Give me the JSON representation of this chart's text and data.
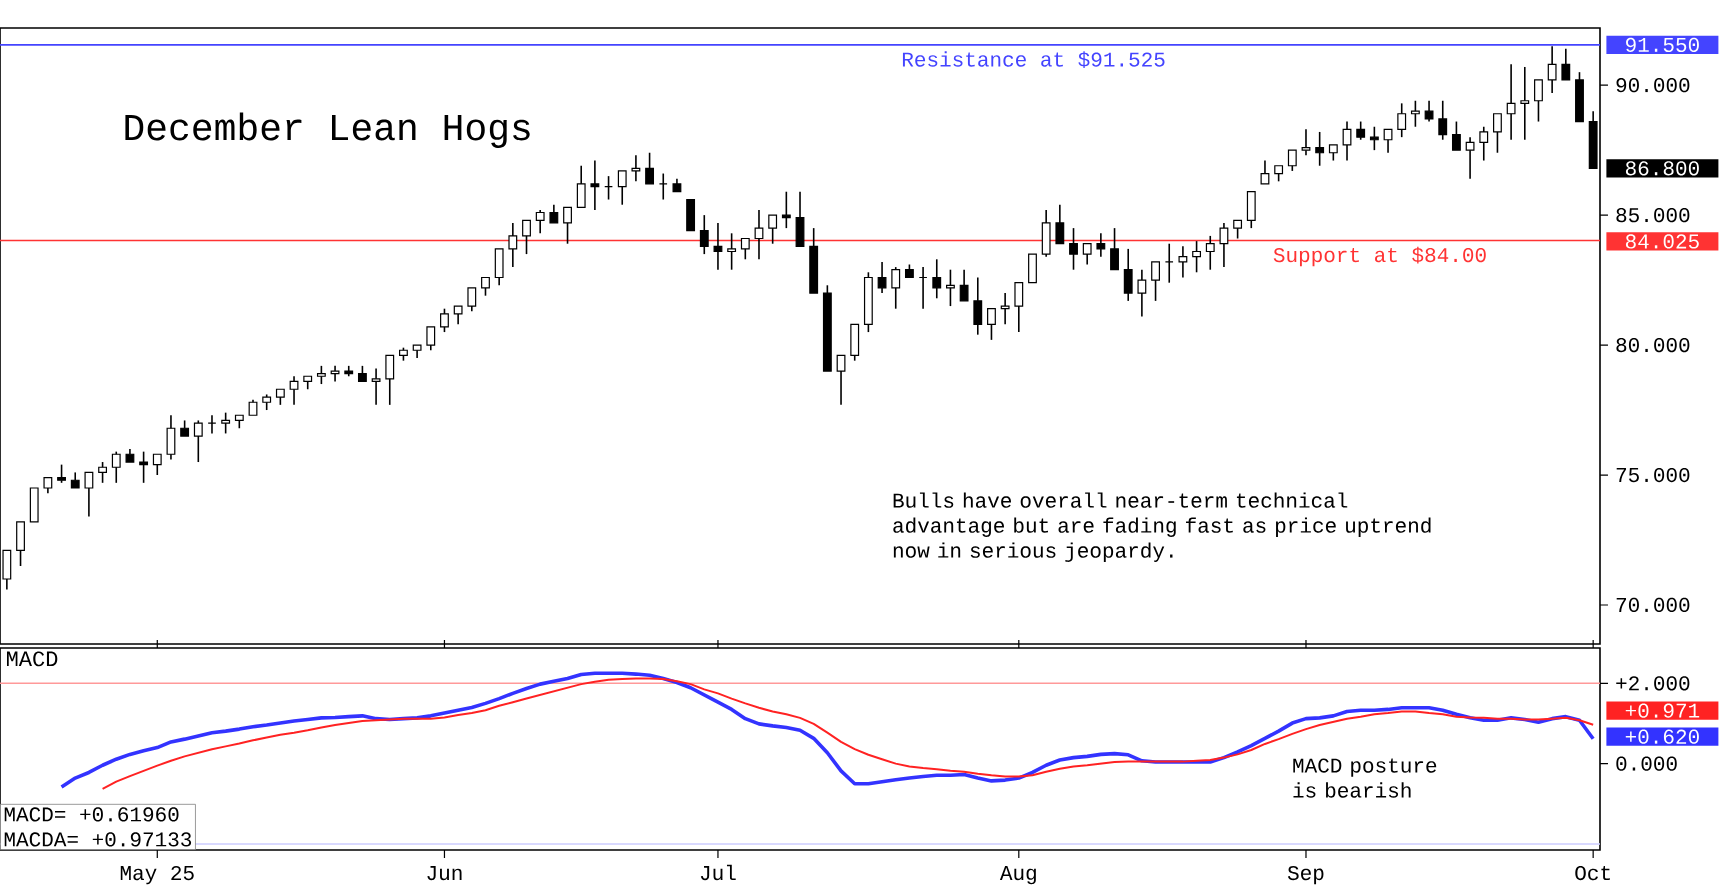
{
  "chart_data": [
    {
      "type": "candlestick",
      "title": "December Lean Hogs",
      "color": "#000000",
      "categories": [
        null,
        null,
        null,
        null,
        null,
        null,
        null,
        null,
        null,
        null,
        null,
        null,
        null,
        null,
        null,
        null,
        null,
        null,
        null,
        null,
        null,
        null,
        null,
        null,
        null,
        null,
        null,
        null,
        null,
        null,
        null,
        null,
        null,
        null,
        null,
        null,
        null,
        null,
        null,
        null,
        null,
        null,
        null,
        null,
        null,
        null,
        null,
        null,
        null,
        null,
        null,
        null,
        null,
        null,
        null,
        null,
        null,
        null,
        null,
        null,
        null,
        null,
        null,
        null,
        null,
        null,
        null,
        null,
        null,
        null,
        null,
        null,
        null,
        null,
        null,
        null,
        null,
        null,
        null,
        null,
        null,
        null,
        null,
        null,
        null,
        null,
        null,
        null,
        null,
        null,
        null,
        null,
        null,
        null,
        null,
        null,
        null,
        null,
        null,
        null,
        null,
        null,
        null,
        null,
        null,
        null,
        null,
        null,
        null,
        null,
        null,
        null,
        null,
        null,
        null,
        null,
        null
      ],
      "ohlc": [
        [
          71.0,
          72.1,
          70.6,
          72.1
        ],
        [
          72.1,
          73.2,
          71.5,
          73.2
        ],
        [
          73.2,
          74.5,
          73.2,
          74.5
        ],
        [
          74.5,
          74.9,
          74.3,
          74.9
        ],
        [
          74.9,
          75.4,
          74.7,
          74.8
        ],
        [
          74.8,
          75.1,
          74.5,
          74.5
        ],
        [
          74.5,
          75.1,
          73.4,
          75.1
        ],
        [
          75.1,
          75.5,
          74.7,
          75.3
        ],
        [
          75.3,
          75.9,
          74.7,
          75.8
        ],
        [
          75.8,
          76.0,
          75.5,
          75.5
        ],
        [
          75.5,
          75.9,
          74.7,
          75.4
        ],
        [
          75.4,
          75.8,
          75.0,
          75.8
        ],
        [
          75.8,
          77.3,
          75.6,
          76.8
        ],
        [
          76.8,
          77.1,
          76.5,
          76.5
        ],
        [
          76.5,
          77.1,
          75.5,
          77.0
        ],
        [
          77.0,
          77.3,
          76.6,
          77.0
        ],
        [
          77.0,
          77.4,
          76.6,
          77.1
        ],
        [
          77.1,
          77.3,
          76.8,
          77.3
        ],
        [
          77.3,
          77.9,
          77.3,
          77.8
        ],
        [
          77.8,
          78.1,
          77.5,
          78.0
        ],
        [
          78.0,
          78.3,
          77.7,
          78.3
        ],
        [
          78.3,
          78.8,
          77.7,
          78.6
        ],
        [
          78.6,
          78.8,
          78.3,
          78.8
        ],
        [
          78.8,
          79.2,
          78.5,
          78.9
        ],
        [
          78.9,
          79.2,
          78.6,
          79.0
        ],
        [
          79.0,
          79.2,
          78.8,
          78.9
        ],
        [
          78.9,
          79.2,
          78.6,
          78.6
        ],
        [
          78.6,
          79.1,
          77.7,
          78.7
        ],
        [
          78.7,
          79.6,
          77.7,
          79.6
        ],
        [
          79.6,
          79.9,
          79.4,
          79.8
        ],
        [
          79.8,
          80.0,
          79.5,
          80.0
        ],
        [
          80.0,
          80.7,
          79.8,
          80.7
        ],
        [
          80.7,
          81.4,
          80.5,
          81.2
        ],
        [
          81.2,
          81.5,
          80.8,
          81.5
        ],
        [
          81.5,
          82.2,
          81.3,
          82.2
        ],
        [
          82.2,
          82.6,
          81.9,
          82.6
        ],
        [
          82.6,
          83.7,
          82.3,
          83.7
        ],
        [
          83.7,
          84.7,
          83.0,
          84.2
        ],
        [
          84.2,
          84.8,
          83.5,
          84.8
        ],
        [
          84.8,
          85.2,
          84.3,
          85.1
        ],
        [
          85.1,
          85.4,
          84.7,
          84.7
        ],
        [
          84.7,
          85.3,
          83.9,
          85.3
        ],
        [
          85.3,
          86.9,
          85.3,
          86.2
        ],
        [
          86.2,
          87.1,
          85.2,
          86.1
        ],
        [
          86.1,
          86.5,
          85.6,
          86.1
        ],
        [
          86.1,
          86.7,
          85.4,
          86.7
        ],
        [
          86.7,
          87.3,
          86.3,
          86.8
        ],
        [
          86.8,
          87.4,
          86.2,
          86.2
        ],
        [
          86.2,
          86.6,
          85.6,
          86.2
        ],
        [
          86.2,
          86.4,
          85.9,
          85.9
        ],
        [
          85.6,
          85.6,
          84.4,
          84.4
        ],
        [
          84.4,
          85.0,
          83.5,
          83.8
        ],
        [
          83.8,
          84.7,
          82.9,
          83.6
        ],
        [
          83.6,
          84.3,
          82.9,
          83.7
        ],
        [
          83.7,
          84.1,
          83.3,
          84.1
        ],
        [
          84.1,
          85.2,
          83.3,
          84.5
        ],
        [
          84.5,
          85.0,
          83.9,
          85.0
        ],
        [
          85.0,
          85.9,
          84.5,
          84.9
        ],
        [
          84.9,
          85.9,
          83.8,
          83.8
        ],
        [
          83.8,
          84.5,
          82.0,
          82.0
        ],
        [
          82.0,
          82.3,
          79.0,
          79.0
        ],
        [
          79.0,
          79.6,
          77.7,
          79.6
        ],
        [
          79.6,
          80.8,
          79.4,
          80.8
        ],
        [
          80.8,
          82.8,
          80.5,
          82.6
        ],
        [
          82.6,
          83.2,
          82.0,
          82.2
        ],
        [
          82.2,
          83.0,
          81.4,
          82.9
        ],
        [
          82.9,
          83.1,
          82.6,
          82.6
        ],
        [
          82.6,
          83.0,
          81.4,
          82.6
        ],
        [
          82.6,
          83.3,
          81.8,
          82.2
        ],
        [
          82.2,
          82.9,
          81.5,
          82.3
        ],
        [
          82.3,
          82.9,
          81.7,
          81.7
        ],
        [
          81.7,
          82.6,
          80.4,
          80.8
        ],
        [
          80.8,
          81.4,
          80.2,
          81.4
        ],
        [
          81.4,
          82.0,
          80.8,
          81.5
        ],
        [
          81.5,
          82.4,
          80.5,
          82.4
        ],
        [
          82.4,
          83.5,
          82.4,
          83.5
        ],
        [
          83.5,
          85.2,
          83.4,
          84.7
        ],
        [
          84.7,
          85.4,
          83.9,
          83.9
        ],
        [
          83.9,
          84.5,
          82.9,
          83.5
        ],
        [
          83.5,
          83.9,
          83.1,
          83.9
        ],
        [
          83.9,
          84.3,
          83.4,
          83.7
        ],
        [
          83.7,
          84.5,
          82.9,
          82.9
        ],
        [
          82.9,
          83.7,
          81.7,
          82.0
        ],
        [
          82.0,
          82.9,
          81.1,
          82.5
        ],
        [
          82.5,
          83.2,
          81.7,
          83.2
        ],
        [
          83.2,
          83.9,
          82.4,
          83.2
        ],
        [
          83.2,
          83.8,
          82.6,
          83.4
        ],
        [
          83.4,
          84.0,
          82.8,
          83.6
        ],
        [
          83.6,
          84.2,
          82.9,
          83.9
        ],
        [
          83.9,
          84.7,
          83.0,
          84.5
        ],
        [
          84.5,
          84.8,
          84.1,
          84.8
        ],
        [
          84.8,
          85.9,
          84.5,
          85.9
        ],
        [
          86.2,
          87.1,
          86.2,
          86.6
        ],
        [
          86.6,
          86.9,
          86.3,
          86.9
        ],
        [
          86.9,
          87.5,
          86.7,
          87.5
        ],
        [
          87.5,
          88.3,
          87.3,
          87.6
        ],
        [
          87.6,
          88.2,
          86.9,
          87.4
        ],
        [
          87.4,
          87.7,
          87.1,
          87.7
        ],
        [
          87.7,
          88.6,
          87.1,
          88.3
        ],
        [
          88.3,
          88.6,
          87.9,
          88.0
        ],
        [
          88.0,
          88.4,
          87.5,
          87.9
        ],
        [
          87.9,
          88.3,
          87.4,
          88.3
        ],
        [
          88.3,
          89.3,
          88.0,
          88.9
        ],
        [
          88.9,
          89.4,
          88.4,
          89.0
        ],
        [
          89.0,
          89.4,
          88.6,
          88.7
        ],
        [
          88.7,
          89.4,
          87.9,
          88.1
        ],
        [
          88.1,
          88.6,
          87.5,
          87.5
        ],
        [
          87.5,
          88.0,
          86.4,
          87.8
        ],
        [
          87.8,
          88.4,
          87.1,
          88.2
        ],
        [
          88.2,
          88.9,
          87.4,
          88.9
        ],
        [
          88.9,
          90.8,
          87.9,
          89.3
        ],
        [
          89.3,
          90.7,
          87.9,
          89.4
        ],
        [
          89.4,
          90.2,
          88.6,
          90.2
        ],
        [
          90.2,
          91.5,
          89.7,
          90.8
        ],
        [
          90.8,
          91.4,
          90.2,
          90.2
        ],
        [
          90.2,
          90.5,
          88.6,
          88.6
        ],
        [
          88.6,
          89.0,
          86.8,
          86.8
        ]
      ],
      "ylim": [
        68.5,
        92.2
      ],
      "yticks": [
        {
          "value": 70,
          "label": "70.000"
        },
        {
          "value": 75,
          "label": "75.000"
        },
        {
          "value": 80,
          "label": "80.000"
        },
        {
          "value": 85,
          "label": "85.000"
        },
        {
          "value": 90,
          "label": "90.000"
        }
      ],
      "tick_labels": "y",
      "ref_lines": [
        {
          "axis": "y",
          "value": 91.55,
          "label": "Resistance at $91.525",
          "color": "#4444ff"
        },
        {
          "axis": "y",
          "value": 84.025,
          "label": "Support at $84.00",
          "color": "#ff3333"
        }
      ],
      "annotations": [
        "Bulls have overall near-term technical advantage but are fading fast as price uptrend now in serious jeopardy.",
        "91.550",
        "86.800",
        "84.025"
      ]
    },
    {
      "type": "line",
      "title": "MACD",
      "categories": [
        null,
        null,
        null,
        null,
        null,
        null,
        null,
        null,
        null,
        null,
        null,
        "May 25",
        null,
        null,
        null,
        null,
        null,
        null,
        null,
        null,
        null,
        null,
        null,
        null,
        null,
        null,
        null,
        null,
        null,
        null,
        null,
        null,
        "Jun",
        null,
        null,
        null,
        null,
        null,
        null,
        null,
        null,
        null,
        null,
        null,
        null,
        null,
        null,
        null,
        null,
        null,
        null,
        null,
        "Jul",
        null,
        null,
        null,
        null,
        null,
        null,
        null,
        null,
        null,
        null,
        null,
        null,
        null,
        null,
        null,
        null,
        null,
        null,
        null,
        null,
        null,
        "Aug",
        null,
        null,
        null,
        null,
        null,
        null,
        null,
        null,
        null,
        null,
        null,
        null,
        null,
        null,
        null,
        null,
        null,
        null,
        null,
        null,
        "Sep",
        null,
        null,
        null,
        null,
        null,
        null,
        null,
        null,
        null,
        null,
        null,
        null,
        null,
        null,
        null,
        null,
        null,
        null,
        null,
        null,
        "Oct"
      ],
      "series": [
        {
          "color": "#3333ff",
          "values": [
            null,
            null,
            null,
            null,
            -0.58,
            -0.36,
            -0.22,
            -0.04,
            0.11,
            0.23,
            0.32,
            0.4,
            0.54,
            0.61,
            0.69,
            0.77,
            0.81,
            0.86,
            0.92,
            0.96,
            1.01,
            1.06,
            1.1,
            1.14,
            1.15,
            1.17,
            1.19,
            1.12,
            1.1,
            1.12,
            1.14,
            1.19,
            1.26,
            1.33,
            1.4,
            1.5,
            1.62,
            1.75,
            1.87,
            1.98,
            2.05,
            2.12,
            2.22,
            2.25,
            2.25,
            2.25,
            2.23,
            2.2,
            2.12,
            2.02,
            1.89,
            1.71,
            1.53,
            1.35,
            1.12,
            0.99,
            0.94,
            0.9,
            0.83,
            0.63,
            0.27,
            -0.18,
            -0.5,
            -0.5,
            -0.45,
            -0.4,
            -0.36,
            -0.32,
            -0.29,
            -0.29,
            -0.27,
            -0.36,
            -0.43,
            -0.41,
            -0.36,
            -0.22,
            -0.04,
            0.09,
            0.15,
            0.18,
            0.23,
            0.25,
            0.22,
            0.07,
            0.04,
            0.04,
            0.04,
            0.04,
            0.04,
            0.15,
            0.29,
            0.45,
            0.63,
            0.81,
            1.01,
            1.12,
            1.14,
            1.19,
            1.3,
            1.33,
            1.33,
            1.35,
            1.39,
            1.39,
            1.39,
            1.33,
            1.23,
            1.14,
            1.08,
            1.08,
            1.14,
            1.1,
            1.03,
            1.12,
            1.17,
            1.08,
            0.62
          ]
        },
        {
          "color": "#ff2222",
          "values": [
            null,
            null,
            null,
            null,
            null,
            null,
            null,
            -0.63,
            -0.45,
            -0.31,
            -0.18,
            -0.05,
            0.07,
            0.18,
            0.27,
            0.36,
            0.43,
            0.5,
            0.58,
            0.65,
            0.72,
            0.77,
            0.83,
            0.9,
            0.96,
            1.01,
            1.06,
            1.08,
            1.1,
            1.12,
            1.12,
            1.12,
            1.15,
            1.21,
            1.26,
            1.33,
            1.44,
            1.53,
            1.62,
            1.71,
            1.8,
            1.89,
            1.98,
            2.04,
            2.09,
            2.11,
            2.12,
            2.12,
            2.11,
            2.05,
            1.98,
            1.85,
            1.75,
            1.62,
            1.5,
            1.39,
            1.3,
            1.23,
            1.14,
            0.99,
            0.77,
            0.54,
            0.36,
            0.22,
            0.11,
            0.0,
            -0.07,
            -0.11,
            -0.14,
            -0.18,
            -0.2,
            -0.25,
            -0.29,
            -0.32,
            -0.32,
            -0.29,
            -0.2,
            -0.13,
            -0.07,
            -0.04,
            0.0,
            0.04,
            0.05,
            0.05,
            0.05,
            0.05,
            0.05,
            0.07,
            0.09,
            0.15,
            0.23,
            0.34,
            0.49,
            0.61,
            0.74,
            0.86,
            0.96,
            1.04,
            1.12,
            1.17,
            1.23,
            1.26,
            1.3,
            1.3,
            1.26,
            1.23,
            1.17,
            1.15,
            1.14,
            1.12,
            1.12,
            1.1,
            1.1,
            1.12,
            1.14,
            1.08,
            0.97
          ]
        }
      ],
      "ylim": [
        -2.15,
        2.88
      ],
      "yticks": [
        {
          "value": 2,
          "label": "+2.000"
        },
        {
          "value": 0,
          "label": "0.000"
        }
      ],
      "ref_lines": [
        {
          "axis": "y",
          "value": 2,
          "color": "#ff9999"
        },
        {
          "axis": "y",
          "value": -2,
          "color": "#ccccff"
        }
      ],
      "annotations": [
        "MACD posture is bearish",
        "MACD=  +0.61960",
        "MACDA= +0.97133",
        "+0.971",
        "+0.620"
      ]
    }
  ]
}
